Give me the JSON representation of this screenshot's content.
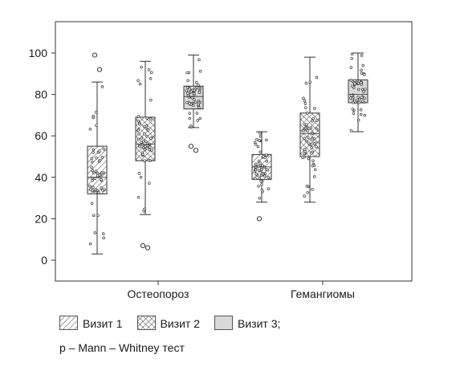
{
  "chart_data": {
    "type": "box",
    "categories": [
      "Остеопороз",
      "Гемангиомы"
    ],
    "y_ticks": [
      0,
      20,
      40,
      60,
      80,
      100
    ],
    "ylim": [
      -10,
      115
    ],
    "series": [
      {
        "name": "Визит 1",
        "pattern": "diag",
        "boxes": [
          {
            "min": 3,
            "q1": 32,
            "median": 40,
            "q3": 55,
            "max": 86,
            "outliers": [
              99,
              92
            ]
          },
          {
            "min": 28,
            "q1": 39,
            "median": 45,
            "q3": 51,
            "max": 62,
            "outliers": [
              20
            ]
          }
        ]
      },
      {
        "name": "Визит 2",
        "pattern": "cross",
        "boxes": [
          {
            "min": 22,
            "q1": 48,
            "median": 56,
            "q3": 69,
            "max": 96,
            "outliers": [
              7,
              6
            ]
          },
          {
            "min": 28,
            "q1": 50,
            "median": 61,
            "q3": 71,
            "max": 98,
            "outliers": []
          }
        ]
      },
      {
        "name": "Визит 3;",
        "pattern": "solid",
        "boxes": [
          {
            "min": 64,
            "q1": 73,
            "median": 79,
            "q3": 84,
            "max": 99,
            "outliers": [
              55,
              53
            ]
          },
          {
            "min": 62,
            "q1": 76,
            "median": 80,
            "q3": 87,
            "max": 100,
            "outliers": []
          }
        ]
      }
    ],
    "colors": {
      "box_fill_solid": "#d9d9d9",
      "stroke": "#333333",
      "hatch": "#444444"
    },
    "grid": false,
    "legend_position": "bottom-left"
  },
  "note": "p – Mann – Whitney тест"
}
